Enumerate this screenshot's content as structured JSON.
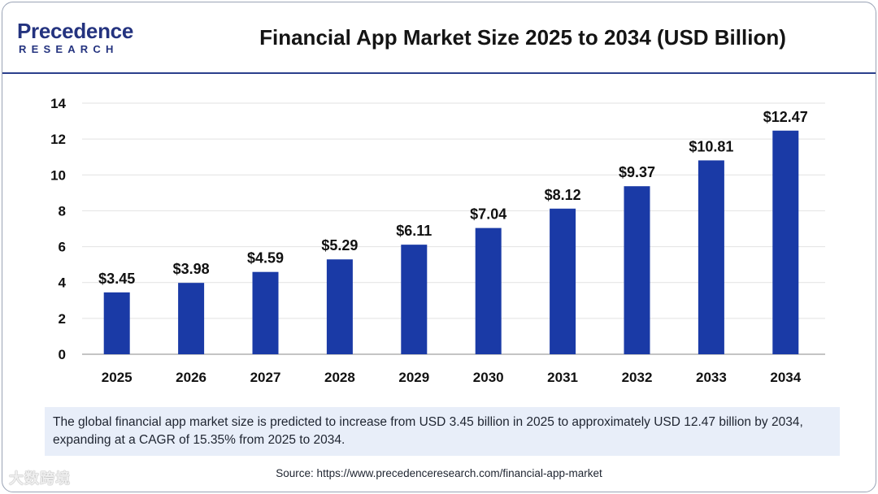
{
  "header": {
    "logo_line1": "Precedence",
    "logo_line2": "RESEARCH",
    "title": "Financial App Market Size 2025 to 2034 (USD Billion)"
  },
  "colors": {
    "bar": "#1a3aa6",
    "header_rule": "#2b3f8c",
    "note_bg": "#e8eef9"
  },
  "chart_data": {
    "type": "bar",
    "title": "Financial App Market Size 2025 to 2034 (USD Billion)",
    "categories": [
      "2025",
      "2026",
      "2027",
      "2028",
      "2029",
      "2030",
      "2031",
      "2032",
      "2033",
      "2034"
    ],
    "values": [
      3.45,
      3.98,
      4.59,
      5.29,
      6.11,
      7.04,
      8.12,
      9.37,
      10.81,
      12.47
    ],
    "data_labels": [
      "$3.45",
      "$3.98",
      "$4.59",
      "$5.29",
      "$6.11",
      "$7.04",
      "$8.12",
      "$9.37",
      "$10.81",
      "$12.47"
    ],
    "yticks": [
      "0",
      "2",
      "4",
      "6",
      "8",
      "10",
      "12",
      "14"
    ],
    "ylim": [
      0,
      14
    ],
    "xlabel": "",
    "ylabel": "",
    "grid": true
  },
  "note": {
    "text": "The global financial app market size is predicted to increase from USD 3.45 billion in 2025 to approximately USD 12.47 billion by 2034, expanding at a CAGR of 15.35% from 2025 to 2034."
  },
  "source": {
    "text": "Source: https://www.precedenceresearch.com/financial-app-market"
  },
  "watermark": {
    "text": "大数跨境"
  }
}
